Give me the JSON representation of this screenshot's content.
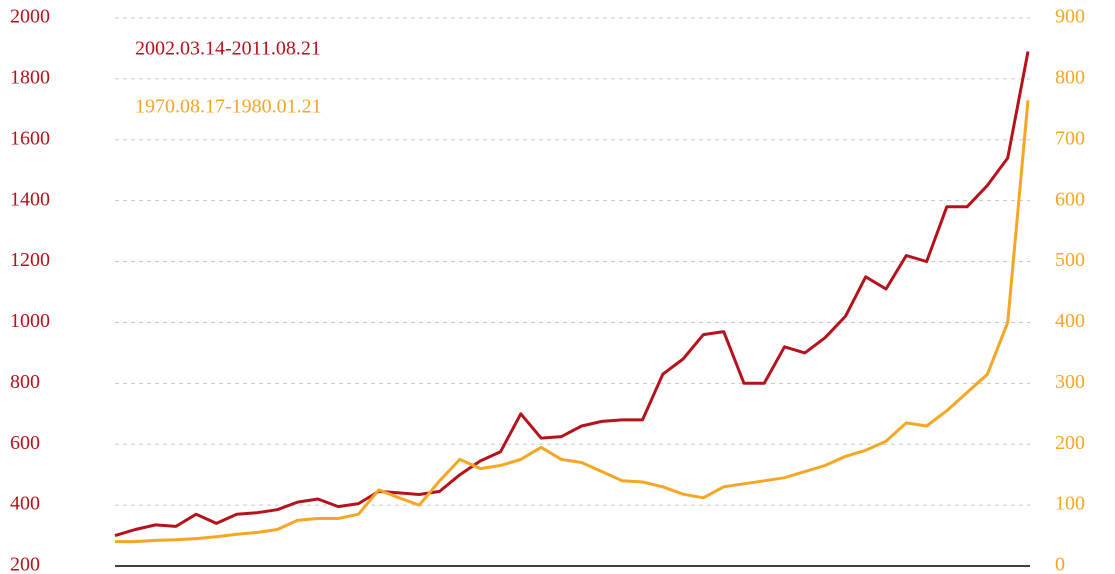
{
  "chart_data": {
    "type": "line",
    "series": [
      {
        "name": "2002.03.14-2011.08.21",
        "color": "#b5121b",
        "axis": "y",
        "values": [
          300,
          320,
          335,
          330,
          370,
          340,
          370,
          375,
          385,
          410,
          420,
          395,
          405,
          445,
          440,
          435,
          445,
          500,
          545,
          575,
          700,
          620,
          625,
          660,
          675,
          680,
          680,
          830,
          880,
          960,
          970,
          800,
          800,
          920,
          900,
          950,
          1020,
          1150,
          1110,
          1220,
          1200,
          1380,
          1380,
          1450,
          1540,
          1890
        ]
      },
      {
        "name": "1970.08.17-1980.01.21",
        "color": "#f5a623",
        "axis": "y2",
        "values": [
          40,
          40,
          42,
          43,
          45,
          48,
          52,
          55,
          60,
          75,
          78,
          78,
          85,
          125,
          112,
          100,
          140,
          175,
          160,
          165,
          175,
          195,
          175,
          170,
          155,
          140,
          138,
          130,
          118,
          112,
          130,
          135,
          140,
          145,
          155,
          165,
          180,
          190,
          205,
          235,
          230,
          255,
          285,
          315,
          400,
          765
        ]
      }
    ],
    "ylim": [
      200,
      2000
    ],
    "yticks": [
      200,
      400,
      600,
      800,
      1000,
      1200,
      1400,
      1600,
      1800,
      2000
    ],
    "y2lim": [
      0,
      900
    ],
    "y2ticks": [
      0,
      100,
      200,
      300,
      400,
      500,
      600,
      700,
      800,
      900
    ],
    "grid": true
  }
}
